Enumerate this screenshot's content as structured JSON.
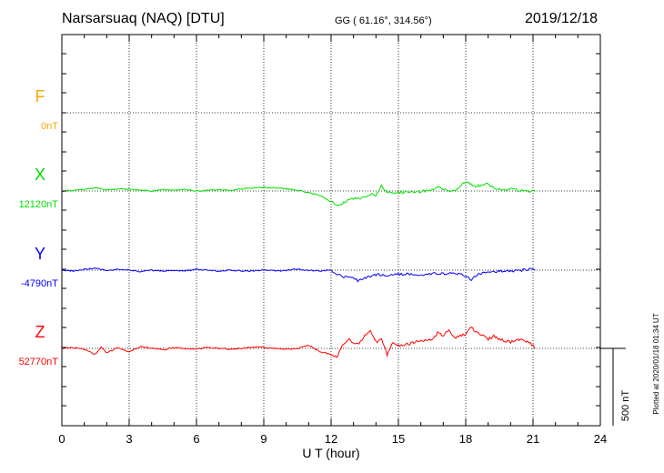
{
  "header": {
    "station": "Narsarsuaq (NAQ)  [DTU]",
    "coords": "GG ( 61.16°, 314.56°)",
    "date": "2019/12/18"
  },
  "footer_note": "Plotted at 2020/01/18 01:34 UT",
  "scale_label": "500 nT",
  "chart_data": {
    "type": "line",
    "title": "Narsarsuaq (NAQ)  [DTU]",
    "xlabel": "U T (hour)",
    "ylabel": "",
    "xlim": [
      0,
      24
    ],
    "xticks": [
      0,
      3,
      6,
      9,
      12,
      15,
      18,
      21,
      24
    ],
    "grid": true,
    "scale_nT_per_bar": 500,
    "series": [
      {
        "name": "F",
        "baseline_label": "0nT",
        "color": "#ffa500",
        "data_available": false,
        "x": [],
        "y": []
      },
      {
        "name": "X",
        "baseline_label": "12120nT",
        "color": "#00e000",
        "data_available": true,
        "x": [
          0,
          0.5,
          1,
          1.5,
          2,
          2.5,
          3,
          3.5,
          4,
          4.5,
          5,
          5.5,
          6,
          6.5,
          7,
          7.5,
          8,
          8.5,
          9,
          9.5,
          10,
          10.5,
          11,
          11.5,
          12,
          12.25,
          12.5,
          12.75,
          13,
          13.25,
          13.5,
          13.75,
          14,
          14.25,
          14.5,
          14.75,
          15,
          15.5,
          16,
          16.5,
          16.75,
          17,
          17.5,
          18,
          18.25,
          18.5,
          19,
          19.25,
          19.5,
          20,
          20.5,
          21,
          21.1
        ],
        "y": [
          0,
          5,
          10,
          20,
          5,
          15,
          10,
          5,
          0,
          10,
          5,
          10,
          0,
          5,
          10,
          5,
          15,
          20,
          25,
          20,
          15,
          5,
          -10,
          -30,
          -70,
          -90,
          -80,
          -60,
          -50,
          -45,
          -35,
          -20,
          -30,
          30,
          -10,
          -15,
          -10,
          -5,
          -5,
          10,
          25,
          10,
          0,
          60,
          40,
          30,
          50,
          20,
          10,
          10,
          5,
          0,
          0
        ]
      },
      {
        "name": "Y",
        "baseline_label": "-4790nT",
        "color": "#0000ff",
        "data_available": true,
        "x": [
          0,
          0.5,
          1,
          1.5,
          2,
          2.5,
          3,
          3.5,
          4,
          4.5,
          5,
          5.5,
          6,
          6.5,
          7,
          7.5,
          8,
          8.5,
          9,
          9.5,
          10,
          10.5,
          11,
          11.5,
          12,
          12.25,
          12.5,
          12.75,
          13,
          13.25,
          13.5,
          13.75,
          14,
          14.5,
          15,
          15.5,
          16,
          16.5,
          17,
          17.5,
          18,
          18.25,
          18.5,
          19,
          19.5,
          20,
          20.5,
          21,
          21.1
        ],
        "y": [
          0,
          -5,
          5,
          15,
          -5,
          5,
          0,
          -10,
          0,
          -5,
          0,
          -5,
          5,
          0,
          -5,
          0,
          -5,
          -5,
          0,
          -5,
          0,
          5,
          0,
          -5,
          0,
          -30,
          -40,
          -45,
          -55,
          -70,
          -50,
          -40,
          -30,
          -35,
          -25,
          -25,
          -30,
          -20,
          -25,
          -15,
          -40,
          -60,
          -30,
          -15,
          -5,
          -5,
          0,
          5,
          0
        ]
      },
      {
        "name": "Z",
        "baseline_label": "52770nT",
        "color": "#ff0000",
        "data_available": true,
        "x": [
          0,
          0.5,
          1,
          1.5,
          1.75,
          2,
          2.5,
          3,
          3.5,
          4,
          4.5,
          5,
          5.5,
          6,
          6.5,
          7,
          7.5,
          8,
          8.5,
          9,
          9.5,
          10,
          10.5,
          11,
          11.5,
          12,
          12.25,
          12.5,
          12.75,
          13,
          13.25,
          13.5,
          13.75,
          14,
          14.25,
          14.5,
          14.75,
          15,
          15.5,
          16,
          16.5,
          16.75,
          17,
          17.25,
          17.5,
          18,
          18.25,
          18.5,
          18.75,
          19,
          19.25,
          19.5,
          20,
          20.5,
          21,
          21.1
        ],
        "y": [
          0,
          5,
          -5,
          -40,
          10,
          -30,
          5,
          -20,
          10,
          0,
          -10,
          5,
          0,
          -5,
          5,
          0,
          -5,
          0,
          10,
          5,
          0,
          -5,
          0,
          20,
          -20,
          -40,
          -60,
          20,
          60,
          40,
          30,
          80,
          120,
          40,
          60,
          -40,
          40,
          20,
          30,
          50,
          60,
          100,
          80,
          120,
          70,
          90,
          140,
          100,
          90,
          60,
          80,
          60,
          40,
          60,
          20,
          0
        ]
      }
    ]
  }
}
